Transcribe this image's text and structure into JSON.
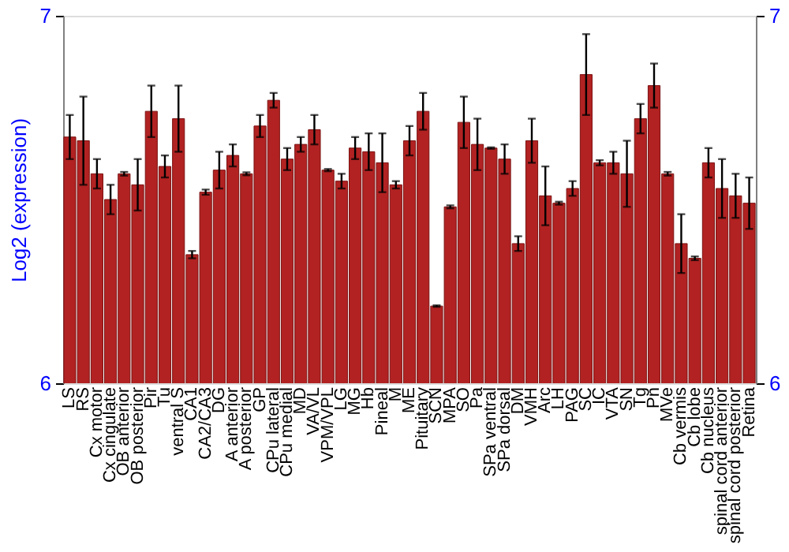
{
  "chart_data": {
    "type": "bar",
    "ylabel": "Log2 (expression)",
    "categories": [
      "LS",
      "RS",
      "Cx motor",
      "Cx cingulate",
      "OB anterior",
      "OB posterior",
      "Pir",
      "Tu",
      "ventral S",
      "CA1",
      "CA2/CA3",
      "DG",
      "A anterior",
      "A posterior",
      "GP",
      "CPu lateral",
      "CPu medial",
      "MD",
      "VA/VL",
      "VPM/VPL",
      "LG",
      "MG",
      "Hb",
      "Pineal",
      "M",
      "ME",
      "Pituitary",
      "SCN",
      "MPA",
      "SO",
      "Pa",
      "SPa ventral",
      "SPa dorsal",
      "DM",
      "VMH",
      "Arc",
      "LH",
      "PAG",
      "SC",
      "IC",
      "VTA",
      "SN",
      "Tg",
      "Pn",
      "MVe",
      "Cb vermis",
      "Cb lobe",
      "Cb nucleus",
      "spinal cord anterior",
      "spinal cord posterior",
      "Retina"
    ],
    "values": [
      6.67,
      6.66,
      6.57,
      6.5,
      6.57,
      6.54,
      6.74,
      6.59,
      6.72,
      6.35,
      6.52,
      6.58,
      6.62,
      6.57,
      6.7,
      6.77,
      6.61,
      6.65,
      6.69,
      6.58,
      6.55,
      6.64,
      6.63,
      6.6,
      6.54,
      6.66,
      6.74,
      6.21,
      6.48,
      6.71,
      6.65,
      6.64,
      6.61,
      6.38,
      6.66,
      6.51,
      6.49,
      6.53,
      6.84,
      6.6,
      6.6,
      6.57,
      6.72,
      6.81,
      6.57,
      6.38,
      6.34,
      6.6,
      6.53,
      6.51,
      6.49
    ],
    "errors": [
      0.06,
      0.12,
      0.04,
      0.04,
      0.005,
      0.07,
      0.07,
      0.03,
      0.09,
      0.01,
      0.007,
      0.05,
      0.03,
      0.004,
      0.03,
      0.02,
      0.03,
      0.02,
      0.04,
      0.003,
      0.02,
      0.03,
      0.05,
      0.08,
      0.01,
      0.04,
      0.05,
      0.002,
      0.004,
      0.07,
      0.07,
      0.002,
      0.04,
      0.02,
      0.06,
      0.08,
      0.004,
      0.02,
      0.11,
      0.007,
      0.03,
      0.09,
      0.04,
      0.06,
      0.005,
      0.08,
      0.005,
      0.04,
      0.08,
      0.06,
      0.07
    ],
    "color": "#b22222",
    "ylim": [
      6,
      7
    ],
    "yticks": [
      6,
      7
    ],
    "y2lim": [
      6,
      7
    ],
    "y2ticks": [
      6,
      7
    ],
    "grid": false
  }
}
